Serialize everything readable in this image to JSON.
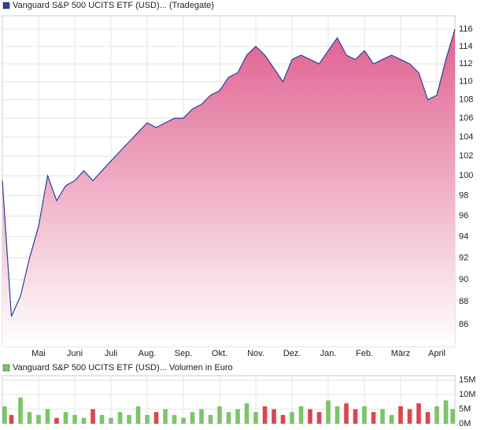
{
  "chart_data": [
    {
      "type": "area",
      "title": "Vanguard S&P 500 UCITS ETF (USD)... (Tradegate)",
      "log_scale": true,
      "grid": true,
      "x": [
        0,
        0.25,
        0.5,
        0.75,
        1,
        1.25,
        1.5,
        1.75,
        2,
        2.25,
        2.5,
        2.75,
        3,
        3.25,
        3.5,
        3.75,
        4,
        4.25,
        4.5,
        4.75,
        5,
        5.25,
        5.5,
        5.75,
        6,
        6.25,
        6.5,
        6.75,
        7,
        7.25,
        7.5,
        7.75,
        8,
        8.25,
        8.5,
        8.75,
        9,
        9.25,
        9.5,
        9.75,
        10,
        10.25,
        10.5,
        10.75,
        11,
        11.25,
        11.5,
        11.75,
        12,
        12.25,
        12.5
      ],
      "series": [
        {
          "color": "#2a3f9e",
          "fill_color": "#e0608f",
          "values": [
            99.5,
            86.7,
            88.5,
            92,
            95,
            100,
            97.5,
            99,
            99.5,
            100.5,
            99.5,
            100.5,
            101.5,
            102.5,
            103.5,
            104.5,
            105.5,
            105,
            105.5,
            106,
            106,
            107,
            107.5,
            108.5,
            109,
            110.5,
            111,
            113,
            114,
            113,
            111.5,
            110,
            112.5,
            113,
            112.5,
            112,
            113.5,
            115,
            113,
            112.5,
            113.5,
            112,
            112.5,
            113,
            112.5,
            112,
            111,
            108,
            108.5,
            112.5,
            116
          ]
        }
      ],
      "xlim": [
        0,
        12.5
      ],
      "xticks": [
        {
          "value": 1,
          "label": "Mai"
        },
        {
          "value": 2,
          "label": "Juni"
        },
        {
          "value": 3,
          "label": "Juli"
        },
        {
          "value": 4,
          "label": "Aug."
        },
        {
          "value": 5,
          "label": "Sep."
        },
        {
          "value": 6,
          "label": "Okt."
        },
        {
          "value": 7,
          "label": "Nov."
        },
        {
          "value": 8,
          "label": "Dez."
        },
        {
          "value": 9,
          "label": "Jan."
        },
        {
          "value": 10,
          "label": "Feb."
        },
        {
          "value": 11,
          "label": "März"
        },
        {
          "value": 12,
          "label": "April"
        }
      ],
      "ylim": [
        84.1,
        117.6
      ],
      "yticks": [
        86,
        88,
        90,
        92,
        94,
        96,
        98,
        100,
        102,
        104,
        106,
        108,
        110,
        112,
        114,
        116
      ]
    },
    {
      "type": "volume",
      "title": "Vanguard S&P 500 UCITS ETF (USD)... Volumen in Euro",
      "grid": true,
      "up_color": "#7cc46a",
      "down_color": "#d9474f",
      "values": [
        6000000,
        3000000,
        9000000,
        4000000,
        3000000,
        5000000,
        2000000,
        4000000,
        3000000,
        2000000,
        5000000,
        3000000,
        2000000,
        4000000,
        3000000,
        6000000,
        3000000,
        4000000,
        5000000,
        3000000,
        2000000,
        4000000,
        5000000,
        3000000,
        6000000,
        4000000,
        5000000,
        7000000,
        4000000,
        6000000,
        5000000,
        3000000,
        4000000,
        6000000,
        5000000,
        4000000,
        8000000,
        6000000,
        7000000,
        5000000,
        6000000,
        4000000,
        5000000,
        3000000,
        6000000,
        5000000,
        7000000,
        4000000,
        6000000,
        8000000,
        5000000
      ],
      "ylim": [
        0,
        16500000
      ],
      "yticks": [
        {
          "value": 0,
          "label": "0M"
        },
        {
          "value": 5000000,
          "label": "5M"
        },
        {
          "value": 10000000,
          "label": "10M"
        },
        {
          "value": 15000000,
          "label": "15M"
        }
      ]
    }
  ]
}
